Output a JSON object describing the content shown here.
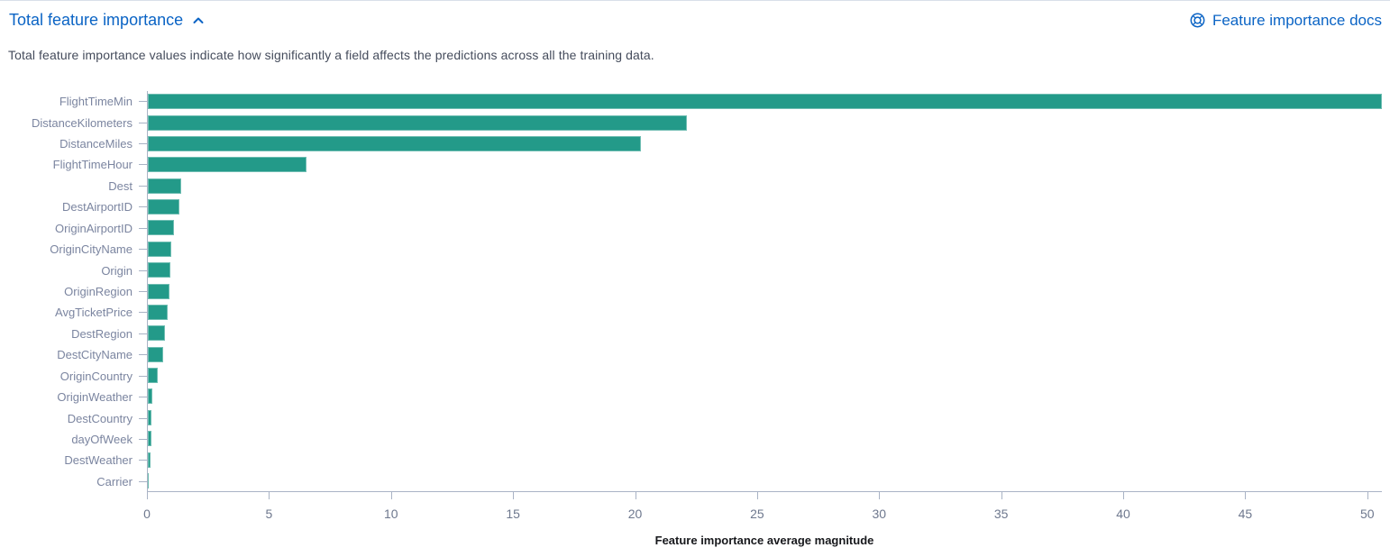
{
  "header": {
    "title": "Total feature importance",
    "docs_link_label": "Feature importance docs",
    "accent_color": "#0b64c5"
  },
  "description": "Total feature importance values indicate how significantly a field affects the predictions across all the training data.",
  "chart_data": {
    "type": "bar",
    "orientation": "horizontal",
    "title": "Total feature importance",
    "xlabel": "Feature importance average magnitude",
    "ylabel": "",
    "xlim": [
      0,
      50.6
    ],
    "x_ticks": [
      0,
      5,
      10,
      15,
      20,
      25,
      30,
      35,
      40,
      45,
      50
    ],
    "grid": false,
    "legend": "none",
    "bar_color": "#239a89",
    "categories": [
      "FlightTimeMin",
      "DistanceKilometers",
      "DistanceMiles",
      "FlightTimeHour",
      "Dest",
      "DestAirportID",
      "OriginAirportID",
      "OriginCityName",
      "Origin",
      "OriginRegion",
      "AvgTicketPrice",
      "DestRegion",
      "DestCityName",
      "OriginCountry",
      "OriginWeather",
      "DestCountry",
      "dayOfWeek",
      "DestWeather",
      "Carrier"
    ],
    "values": [
      50.6,
      22.1,
      20.2,
      6.5,
      1.35,
      1.3,
      1.06,
      0.97,
      0.92,
      0.87,
      0.82,
      0.72,
      0.61,
      0.39,
      0.17,
      0.15,
      0.14,
      0.1,
      0.03
    ]
  }
}
